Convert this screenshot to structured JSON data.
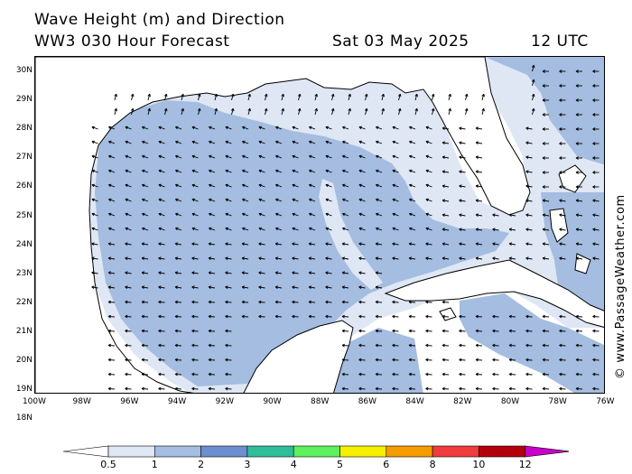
{
  "header": {
    "title": "Wave Height (m) and Direction",
    "model": "WW3 030 Hour Forecast",
    "date": "Sat 03 May 2025",
    "time": "12 UTC"
  },
  "map": {
    "latitudes": [
      "30N",
      "29N",
      "28N",
      "27N",
      "26N",
      "25N",
      "24N",
      "23N",
      "22N",
      "21N",
      "20N",
      "19N",
      "18N"
    ],
    "longitudes": [
      "100W",
      "98W",
      "96W",
      "94W",
      "92W",
      "90W",
      "88W",
      "86W",
      "84W",
      "82W",
      "80W",
      "78W",
      "76W"
    ],
    "colors": {
      "land": "#ffffff",
      "band_0_5": "#dfe7f5",
      "band_1": "#a4bde0",
      "coast": "#000000",
      "arrow": "#000000"
    }
  },
  "legend": {
    "values": [
      "0.5",
      "1",
      "2",
      "3",
      "4",
      "5",
      "6",
      "8",
      "10",
      "12"
    ],
    "colors": [
      "#ffffff",
      "#dfe7f5",
      "#a4bde0",
      "#6b8fcf",
      "#2fbe9a",
      "#5ef05e",
      "#f5f000",
      "#f59c00",
      "#f03c3c",
      "#b3000c",
      "#c800c8"
    ]
  },
  "credit": "© www.PassageWeather.com"
}
